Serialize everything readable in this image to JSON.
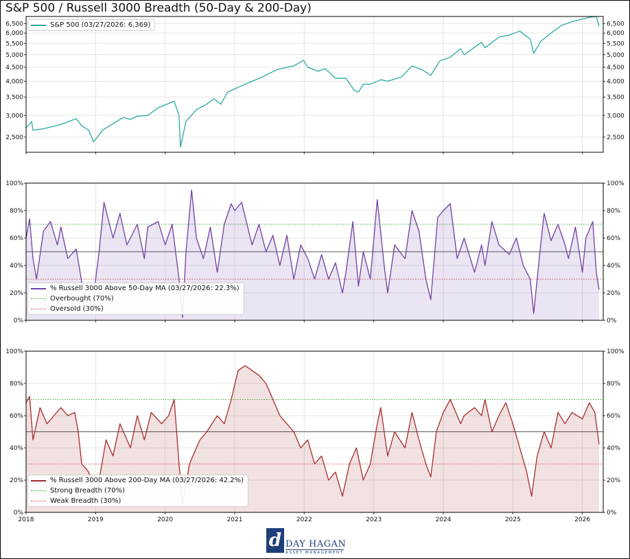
{
  "title": "S&P 500 / Russell 3000 Breadth (50-Day & 200-Day)",
  "logo": {
    "name": "DAY HAGAN",
    "subtitle": "ASSET MANAGEMENT",
    "mark": "d"
  },
  "x_ticks": [
    "2018",
    "2019",
    "2020",
    "2021",
    "2022",
    "2023",
    "2024",
    "2025",
    "2026"
  ],
  "chart_data": [
    {
      "type": "line",
      "scale": "log",
      "ylim": [
        2200,
        6900
      ],
      "yticks": [
        "2,500",
        "3,000",
        "3,500",
        "4,000",
        "4,500",
        "5,000",
        "5,500",
        "6,000",
        "6,500"
      ],
      "ytick_values": [
        2500,
        3000,
        3500,
        4000,
        4500,
        5000,
        5500,
        6000,
        6500
      ],
      "xlim": [
        2018.0,
        2026.3
      ],
      "grid": true,
      "legend_position": "top-left",
      "series": [
        {
          "name": "S&P 500 (03/27/2026: 6,369)",
          "color": "#2aa8a0",
          "x": [
            2018.0,
            2018.08,
            2018.1,
            2018.25,
            2018.35,
            2018.5,
            2018.72,
            2018.8,
            2018.9,
            2018.97,
            2019.1,
            2019.3,
            2019.4,
            2019.5,
            2019.6,
            2019.75,
            2019.9,
            2020.13,
            2020.2,
            2020.22,
            2020.3,
            2020.45,
            2020.6,
            2020.7,
            2020.8,
            2020.9,
            2021.0,
            2021.2,
            2021.4,
            2021.6,
            2021.75,
            2021.85,
            2021.99,
            2022.05,
            2022.2,
            2022.3,
            2022.45,
            2022.6,
            2022.72,
            2022.78,
            2022.85,
            2022.95,
            2023.1,
            2023.2,
            2023.4,
            2023.55,
            2023.7,
            2023.82,
            2023.95,
            2024.1,
            2024.25,
            2024.3,
            2024.55,
            2024.6,
            2024.8,
            2024.95,
            2025.1,
            2025.25,
            2025.3,
            2025.4,
            2025.55,
            2025.7,
            2025.85,
            2026.0,
            2026.1,
            2026.2,
            2026.24
          ],
          "y": [
            2700,
            2850,
            2650,
            2680,
            2720,
            2780,
            2920,
            2750,
            2650,
            2400,
            2650,
            2850,
            2950,
            2900,
            2980,
            3000,
            3200,
            3380,
            3000,
            2300,
            2850,
            3150,
            3300,
            3450,
            3300,
            3650,
            3750,
            3950,
            4150,
            4400,
            4500,
            4550,
            4770,
            4500,
            4350,
            4450,
            4100,
            4100,
            3700,
            3650,
            3900,
            3900,
            4050,
            4000,
            4150,
            4550,
            4400,
            4200,
            4750,
            4900,
            5250,
            5000,
            5550,
            5300,
            5800,
            5900,
            6100,
            5700,
            5050,
            5600,
            6000,
            6400,
            6600,
            6750,
            6850,
            6900,
            6369
          ]
        }
      ]
    },
    {
      "type": "area",
      "ylim": [
        0,
        100
      ],
      "yticks": [
        "0%",
        "20%",
        "40%",
        "60%",
        "80%",
        "100%"
      ],
      "ytick_values": [
        0,
        20,
        40,
        60,
        80,
        100
      ],
      "xlim": [
        2018.0,
        2026.3
      ],
      "reference_lines": [
        {
          "name": "Overbought (70%)",
          "value": 70,
          "color": "#3caa3c"
        },
        {
          "name": "Oversold (30%)",
          "value": 30,
          "color": "#d94a4a"
        }
      ],
      "midline": 50,
      "legend_position": "bottom-left",
      "series": [
        {
          "name": "% Russell 3000 Above 50-Day MA (03/27/2026: 22.3%)",
          "color": "#6f3fa0",
          "x": [
            2018.0,
            2018.05,
            2018.1,
            2018.15,
            2018.25,
            2018.35,
            2018.45,
            2018.5,
            2018.6,
            2018.72,
            2018.8,
            2018.95,
            2019.05,
            2019.12,
            2019.25,
            2019.35,
            2019.45,
            2019.6,
            2019.7,
            2019.75,
            2019.9,
            2020.0,
            2020.1,
            2020.2,
            2020.25,
            2020.3,
            2020.38,
            2020.45,
            2020.55,
            2020.65,
            2020.75,
            2020.85,
            2020.95,
            2021.0,
            2021.1,
            2021.25,
            2021.35,
            2021.45,
            2021.55,
            2021.65,
            2021.75,
            2021.85,
            2021.95,
            2022.05,
            2022.15,
            2022.25,
            2022.35,
            2022.45,
            2022.55,
            2022.6,
            2022.7,
            2022.78,
            2022.85,
            2022.95,
            2023.05,
            2023.15,
            2023.2,
            2023.3,
            2023.45,
            2023.55,
            2023.65,
            2023.75,
            2023.82,
            2023.92,
            2024.0,
            2024.1,
            2024.2,
            2024.3,
            2024.45,
            2024.55,
            2024.6,
            2024.7,
            2024.8,
            2024.95,
            2025.05,
            2025.15,
            2025.25,
            2025.3,
            2025.4,
            2025.45,
            2025.55,
            2025.65,
            2025.75,
            2025.8,
            2025.9,
            2026.0,
            2026.05,
            2026.15,
            2026.2,
            2026.24
          ],
          "y": [
            60,
            74,
            45,
            30,
            65,
            72,
            55,
            68,
            45,
            52,
            28,
            10,
            50,
            86,
            60,
            78,
            55,
            70,
            45,
            68,
            72,
            55,
            70,
            30,
            2,
            50,
            95,
            60,
            45,
            68,
            35,
            70,
            85,
            80,
            86,
            55,
            70,
            50,
            62,
            40,
            62,
            30,
            55,
            45,
            30,
            48,
            30,
            42,
            20,
            35,
            72,
            25,
            50,
            30,
            88,
            40,
            20,
            55,
            45,
            80,
            65,
            30,
            15,
            75,
            80,
            85,
            45,
            60,
            35,
            55,
            40,
            72,
            55,
            48,
            60,
            40,
            30,
            5,
            55,
            78,
            58,
            70,
            55,
            45,
            68,
            35,
            60,
            72,
            35,
            22.3
          ]
        }
      ]
    },
    {
      "type": "area",
      "ylim": [
        0,
        100
      ],
      "yticks": [
        "0%",
        "20%",
        "40%",
        "60%",
        "80%",
        "100%"
      ],
      "ytick_values": [
        0,
        20,
        40,
        60,
        80,
        100
      ],
      "xlim": [
        2018.0,
        2026.3
      ],
      "reference_lines": [
        {
          "name": "Strong Breadth (70%)",
          "value": 70,
          "color": "#3caa3c"
        },
        {
          "name": "Weak Breadth (30%)",
          "value": 30,
          "color": "#d94a4a"
        }
      ],
      "midline": 50,
      "legend_position": "bottom-left",
      "series": [
        {
          "name": "% Russell 3000 Above 200-Day MA (03/27/2026: 42.2%)",
          "color": "#a52a2a",
          "x": [
            2018.0,
            2018.05,
            2018.1,
            2018.2,
            2018.3,
            2018.4,
            2018.5,
            2018.6,
            2018.7,
            2018.75,
            2018.8,
            2018.9,
            2018.97,
            2019.05,
            2019.15,
            2019.25,
            2019.35,
            2019.5,
            2019.6,
            2019.7,
            2019.8,
            2019.95,
            2020.05,
            2020.13,
            2020.2,
            2020.25,
            2020.35,
            2020.5,
            2020.6,
            2020.75,
            2020.85,
            2020.95,
            2021.05,
            2021.15,
            2021.25,
            2021.35,
            2021.45,
            2021.55,
            2021.65,
            2021.75,
            2021.85,
            2021.95,
            2022.05,
            2022.15,
            2022.25,
            2022.35,
            2022.45,
            2022.55,
            2022.65,
            2022.75,
            2022.85,
            2022.95,
            2023.05,
            2023.1,
            2023.2,
            2023.3,
            2023.45,
            2023.55,
            2023.65,
            2023.75,
            2023.82,
            2023.9,
            2024.0,
            2024.1,
            2024.25,
            2024.3,
            2024.45,
            2024.55,
            2024.6,
            2024.7,
            2024.8,
            2024.9,
            2025.0,
            2025.1,
            2025.2,
            2025.27,
            2025.35,
            2025.45,
            2025.55,
            2025.65,
            2025.75,
            2025.85,
            2026.0,
            2026.1,
            2026.18,
            2026.24
          ],
          "y": [
            68,
            72,
            45,
            65,
            55,
            60,
            65,
            60,
            62,
            50,
            30,
            25,
            10,
            20,
            45,
            35,
            55,
            40,
            60,
            45,
            62,
            55,
            60,
            70,
            30,
            5,
            30,
            45,
            50,
            60,
            55,
            70,
            88,
            91,
            88,
            85,
            80,
            70,
            60,
            55,
            50,
            40,
            45,
            30,
            35,
            20,
            25,
            10,
            30,
            40,
            20,
            30,
            55,
            65,
            35,
            50,
            40,
            62,
            45,
            30,
            22,
            50,
            62,
            70,
            55,
            60,
            65,
            60,
            70,
            50,
            60,
            68,
            55,
            40,
            25,
            10,
            35,
            50,
            40,
            62,
            55,
            62,
            58,
            68,
            62,
            42.2
          ]
        }
      ]
    }
  ]
}
